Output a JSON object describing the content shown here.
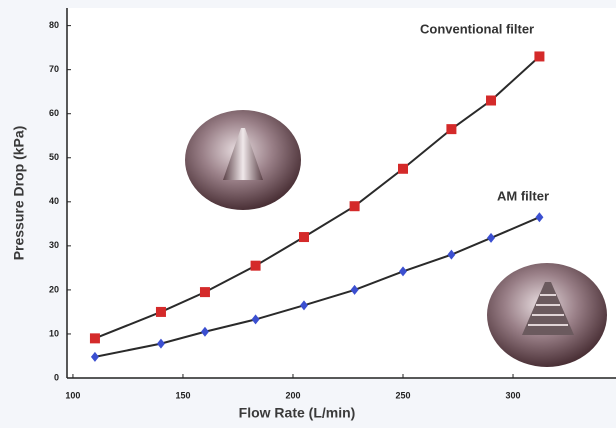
{
  "chart_data": {
    "type": "line",
    "x_label": "Flow Rate (L/min)",
    "y_label": "Pressure Drop (kPa)",
    "annotations": [
      "Conventional filter",
      "AM filter"
    ],
    "x": [
      110,
      140,
      160,
      183,
      205,
      228,
      250,
      272,
      290,
      312
    ],
    "series": [
      {
        "name": "Conventional filter",
        "color": "#d42a2a",
        "marker": "square",
        "values": [
          9,
          15,
          19.5,
          25.5,
          32,
          39,
          47.5,
          56.5,
          63,
          73
        ]
      },
      {
        "name": "AM filter",
        "color": "#3b4fd0",
        "marker": "diamond",
        "values": [
          4.8,
          7.8,
          10.5,
          13.3,
          16.5,
          20,
          24.2,
          28,
          31.8,
          36.5
        ]
      }
    ],
    "xlim": [
      97.3,
      346.8
    ],
    "xticks": [
      100,
      150,
      200,
      250,
      300
    ],
    "ylim": [
      0,
      84
    ],
    "yticks": [
      0,
      10,
      20,
      30,
      40,
      50,
      60,
      70,
      80
    ],
    "grid": false
  }
}
